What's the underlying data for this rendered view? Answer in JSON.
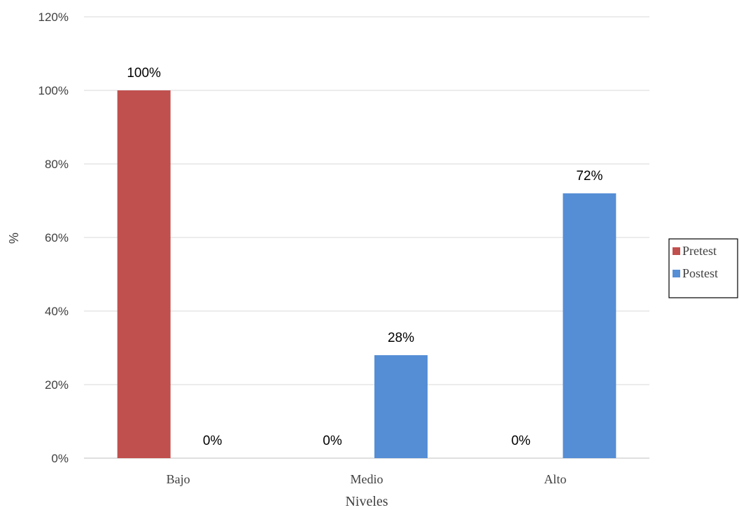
{
  "chart_data": {
    "type": "bar",
    "categories": [
      "Bajo",
      "Medio",
      "Alto"
    ],
    "series": [
      {
        "name": "Pretest",
        "values": [
          100,
          0,
          0
        ],
        "color": "#C0504D"
      },
      {
        "name": "Postest",
        "values": [
          0,
          28,
          72
        ],
        "color": "#558ED5"
      }
    ],
    "data_labels": [
      [
        "100%",
        "0%",
        "0%"
      ],
      [
        "0%",
        "28%",
        "72%"
      ]
    ],
    "xlabel": "Niveles",
    "ylabel": "%",
    "ylim": [
      0,
      120
    ],
    "y_ticks": [
      0,
      20,
      40,
      60,
      80,
      100,
      120
    ],
    "y_tick_labels": [
      "0%",
      "20%",
      "40%",
      "60%",
      "80%",
      "100%",
      "120%"
    ],
    "grid": true,
    "legend_position": "right"
  }
}
